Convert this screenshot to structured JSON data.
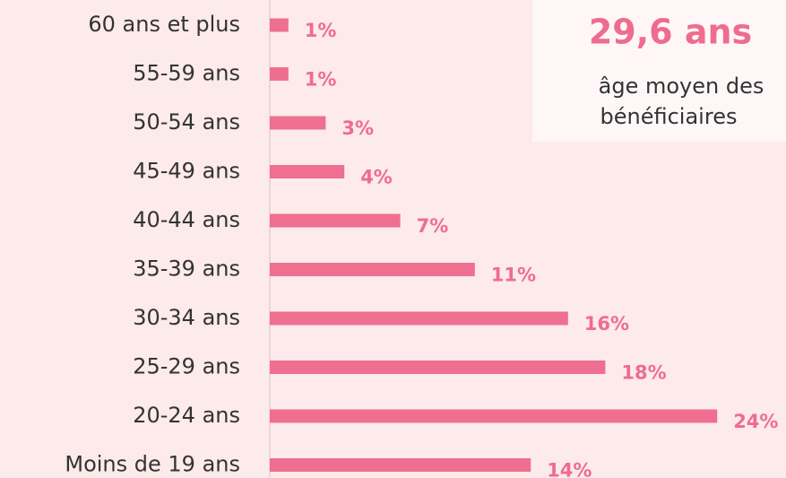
{
  "chart_data": {
    "type": "bar",
    "orientation": "horizontal",
    "color": "#ef6f90",
    "categories": [
      "60 ans et plus",
      "55-59 ans",
      "50-54 ans",
      "45-49 ans",
      "40-44 ans",
      "35-39 ans",
      "30-34 ans",
      "25-29 ans",
      "20-24 ans",
      "Moins de 19 ans"
    ],
    "values": [
      1,
      1,
      3,
      4,
      7,
      11,
      16,
      18,
      24,
      14
    ],
    "value_labels": [
      "1%",
      "1%",
      "3%",
      "4%",
      "7%",
      "11%",
      "16%",
      "18%",
      "24%",
      "14%"
    ],
    "annotation": {
      "headline": "29,6 ans",
      "lines": [
        "âge moyen des",
        "bénéficiaires"
      ]
    }
  }
}
